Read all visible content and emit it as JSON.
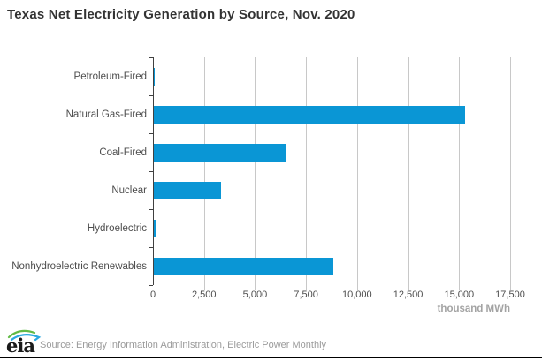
{
  "title": "Texas Net Electricity Generation by Source, Nov. 2020",
  "chart_data": {
    "type": "bar",
    "orientation": "horizontal",
    "title": "Texas Net Electricity Generation by Source, Nov. 2020",
    "categories": [
      "Petroleum-Fired",
      "Natural Gas-Fired",
      "Coal-Fired",
      "Nuclear",
      "Hydroelectric",
      "Nonhydroelectric Renewables"
    ],
    "values": [
      20,
      15250,
      6450,
      3300,
      110,
      8800
    ],
    "xlabel": "thousand MWh",
    "ylabel": "",
    "xlim": [
      0,
      17500
    ],
    "xticks": [
      0,
      2500,
      5000,
      7500,
      10000,
      12500,
      15000,
      17500
    ],
    "xtick_labels": [
      "0",
      "2,500",
      "5,000",
      "7,500",
      "10,000",
      "12,500",
      "15,000",
      "17,500"
    ],
    "grid": true,
    "legend": false
  },
  "footer": {
    "logo_text": "eia",
    "source_text": "Source: Energy Information Administration, Electric Power Monthly"
  },
  "colors": {
    "bar": "#0A96D5",
    "grid": "#C8C8C8",
    "axis": "#404040",
    "title_text": "#333333",
    "label_text": "#4D4D4D",
    "unit_text": "#A3A3A3",
    "source_text": "#9B9B9B",
    "divider": "#000000",
    "logo_green": "#62BB46",
    "logo_blue": "#2BA8E0",
    "logo_letters": "#1A1A1A"
  }
}
